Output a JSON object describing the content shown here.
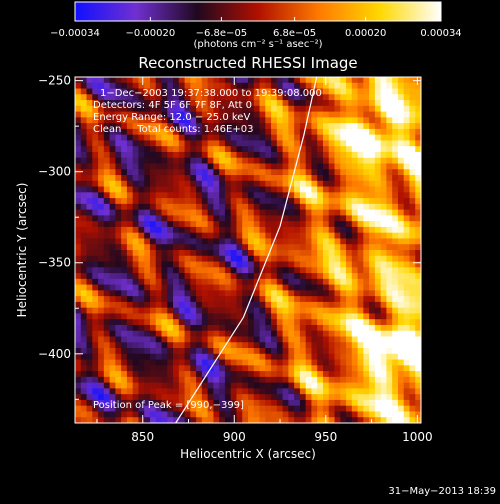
{
  "chart_data": {
    "type": "heatmap",
    "title": "Reconstructed RHESSI Image",
    "xlabel": "Heliocentric X (arcsec)",
    "ylabel": "Heliocentric Y (arcsec)",
    "xlim": [
      813,
      1002
    ],
    "ylim": [
      -438,
      -248
    ],
    "x_ticks": [
      850,
      900,
      950,
      1000
    ],
    "y_ticks": [
      -400,
      -350,
      -300,
      -250
    ],
    "x_tick_labels": [
      "850",
      "900",
      "950",
      "1000"
    ],
    "y_tick_labels": [
      "−400",
      "−350",
      "−300",
      "−250"
    ],
    "colorbar": {
      "min": -0.00034,
      "max": 0.00034,
      "tick_values": [
        -0.00034,
        -0.0002,
        -6.8e-05,
        6.8e-05,
        0.0002,
        0.00034
      ],
      "tick_labels": [
        "−0.00034",
        "−0.00020",
        "−6.8e−05",
        "6.8e−05",
        "0.00020",
        "0.00034"
      ],
      "units_label": "(photons cm⁻² s⁻¹ asec⁻²)",
      "colors": [
        "#1010ff",
        "#7030d0",
        "#200820",
        "#b01000",
        "#ff7a00",
        "#ffd800",
        "#ffffff"
      ]
    },
    "annotations": [
      "1−Dec−2003 19:37:38.000 to 19:39:08.000",
      "Detectors: 4F 5F 6F 7F 8F, Att 0",
      "Energy Range: 12.0 − 25.0 keV",
      "Clean     Total counts: 1.46E+03"
    ],
    "peak_label": "Position of Peak = [990,−399]",
    "peak": [
      990,
      -399
    ],
    "limb_curve": [
      [
        868,
        -438
      ],
      [
        905,
        -380
      ],
      [
        925,
        -330
      ],
      [
        938,
        -280
      ],
      [
        945,
        -248
      ]
    ],
    "timestamp": "31−May−2013 18:39"
  }
}
